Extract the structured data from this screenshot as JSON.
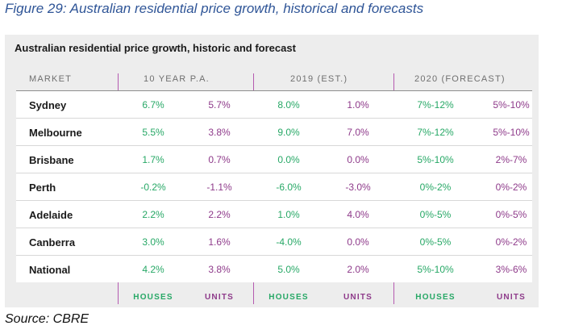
{
  "caption": "Figure 29: Australian residential price growth, historical and forecasts",
  "table_title": "Australian residential price growth, historic and forecast",
  "headers": {
    "market": "MARKET",
    "g1": "10 YEAR P.A.",
    "g2": "2019 (EST.)",
    "g3": "2020 (FORECAST)"
  },
  "rows": [
    {
      "market": "Sydney",
      "v": [
        "6.7%",
        "5.7%",
        "8.0%",
        "1.0%",
        "7%-12%",
        "5%-10%"
      ]
    },
    {
      "market": "Melbourne",
      "v": [
        "5.5%",
        "3.8%",
        "9.0%",
        "7.0%",
        "7%-12%",
        "5%-10%"
      ]
    },
    {
      "market": "Brisbane",
      "v": [
        "1.7%",
        "0.7%",
        "0.0%",
        "0.0%",
        "5%-10%",
        "2%-7%"
      ]
    },
    {
      "market": "Perth",
      "v": [
        "-0.2%",
        "-1.1%",
        "-6.0%",
        "-3.0%",
        "0%-2%",
        "0%-2%"
      ]
    },
    {
      "market": "Adelaide",
      "v": [
        "2.2%",
        "2.2%",
        "1.0%",
        "4.0%",
        "0%-5%",
        "0%-5%"
      ]
    },
    {
      "market": "Canberra",
      "v": [
        "3.0%",
        "1.6%",
        "-4.0%",
        "0.0%",
        "0%-5%",
        "0%-2%"
      ]
    },
    {
      "market": "National",
      "v": [
        "4.2%",
        "3.8%",
        "5.0%",
        "2.0%",
        "5%-10%",
        "3%-6%"
      ]
    }
  ],
  "footer": [
    "HOUSES",
    "UNITS",
    "HOUSES",
    "UNITS",
    "HOUSES",
    "UNITS"
  ],
  "source": "Source: CBRE",
  "colors": {
    "houses": "#27a866",
    "units": "#8e3a8a",
    "divider": "#b55ab0"
  }
}
